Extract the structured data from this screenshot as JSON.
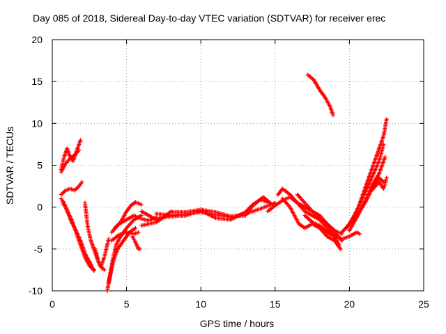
{
  "chart_data": {
    "type": "scatter",
    "title": "Day 085 of 2018, Sidereal Day-to-day VTEC variation (SDTVAR) for receiver erec",
    "xlabel": "GPS time / hours",
    "ylabel": "SDTVAR / TECUs",
    "xlim": [
      0,
      25
    ],
    "ylim": [
      -10,
      20
    ],
    "xticks": [
      "0",
      "5",
      "10",
      "15",
      "20",
      "25"
    ],
    "yticks": [
      "-10",
      "-5",
      "0",
      "5",
      "10",
      "15",
      "20"
    ],
    "grid": true,
    "marker": "+",
    "color": "#ff0000",
    "series": [
      {
        "segments": [
          [
            [
              0.6,
              4.5
            ],
            [
              0.8,
              6.0
            ],
            [
              1.0,
              7.0
            ],
            [
              1.2,
              6.0
            ],
            [
              1.4,
              5.5
            ],
            [
              1.6,
              6.5
            ],
            [
              1.8,
              7.5
            ],
            [
              1.9,
              8.0
            ]
          ],
          [
            [
              0.6,
              4.2
            ],
            [
              0.9,
              5.2
            ],
            [
              1.2,
              5.8
            ],
            [
              1.5,
              6.2
            ],
            [
              1.8,
              6.8
            ]
          ],
          [
            [
              0.6,
              1.5
            ],
            [
              0.9,
              2.0
            ],
            [
              1.2,
              2.2
            ],
            [
              1.5,
              2.0
            ],
            [
              1.8,
              2.5
            ],
            [
              2.0,
              3.0
            ]
          ],
          [
            [
              0.6,
              1.0
            ],
            [
              0.8,
              0.5
            ],
            [
              1.0,
              -0.5
            ],
            [
              1.3,
              -1.5
            ],
            [
              1.6,
              -3.0
            ],
            [
              1.9,
              -4.5
            ],
            [
              2.2,
              -6.0
            ],
            [
              2.5,
              -7.0
            ],
            [
              2.8,
              -7.5
            ]
          ],
          [
            [
              0.7,
              0.5
            ],
            [
              1.0,
              -0.3
            ],
            [
              1.3,
              -1.8
            ],
            [
              1.6,
              -2.8
            ],
            [
              1.9,
              -4.0
            ],
            [
              2.2,
              -5.5
            ],
            [
              2.5,
              -6.5
            ],
            [
              2.8,
              -7.6
            ]
          ],
          [
            [
              2.2,
              0.5
            ],
            [
              2.3,
              -1.0
            ],
            [
              2.4,
              -2.5
            ],
            [
              2.6,
              -4.0
            ],
            [
              2.9,
              -5.5
            ],
            [
              3.2,
              -7.0
            ],
            [
              3.5,
              -7.5
            ]
          ],
          [
            [
              2.9,
              -5.0
            ],
            [
              3.1,
              -6.5
            ],
            [
              3.3,
              -7.0
            ],
            [
              3.5,
              -6.0
            ],
            [
              3.7,
              -4.5
            ],
            [
              3.8,
              -3.8
            ]
          ],
          [
            [
              3.7,
              -10.0
            ],
            [
              3.9,
              -8.0
            ],
            [
              4.1,
              -6.0
            ],
            [
              4.3,
              -4.5
            ],
            [
              4.6,
              -3.5
            ],
            [
              5.0,
              -2.5
            ],
            [
              5.5,
              -1.5
            ],
            [
              6.0,
              -1.0
            ]
          ],
          [
            [
              3.8,
              -9.0
            ],
            [
              4.1,
              -6.5
            ],
            [
              4.4,
              -5.0
            ],
            [
              4.8,
              -4.0
            ],
            [
              5.2,
              -3.0
            ],
            [
              5.6,
              -2.5
            ]
          ],
          [
            [
              4.0,
              -4.0
            ],
            [
              4.5,
              -3.3
            ],
            [
              5.0,
              -3.0
            ],
            [
              5.5,
              -3.2
            ],
            [
              5.8,
              -3.0
            ]
          ],
          [
            [
              4.2,
              -2.5
            ],
            [
              4.6,
              -1.8
            ],
            [
              5.0,
              -0.5
            ],
            [
              5.3,
              0.2
            ],
            [
              5.6,
              0.6
            ],
            [
              6.0,
              0.3
            ]
          ],
          [
            [
              4.0,
              -3.0
            ],
            [
              4.5,
              -2.0
            ],
            [
              5.0,
              -1.5
            ],
            [
              5.5,
              -1.0
            ],
            [
              6.0,
              -1.4
            ],
            [
              6.5,
              -1.6
            ],
            [
              7.0,
              -1.2
            ]
          ],
          [
            [
              5.4,
              -3.5
            ],
            [
              5.6,
              -4.2
            ],
            [
              5.8,
              -5.0
            ],
            [
              5.9,
              -5.0
            ]
          ],
          [
            [
              6.0,
              -0.5
            ],
            [
              6.5,
              -1.0
            ],
            [
              7.0,
              -1.5
            ],
            [
              7.5,
              -1.2
            ],
            [
              8.0,
              -1.0
            ]
          ],
          [
            [
              6.0,
              -2.2
            ],
            [
              6.5,
              -2.0
            ],
            [
              7.0,
              -1.8
            ],
            [
              7.5,
              -1.2
            ],
            [
              8.0,
              -0.5
            ]
          ],
          [
            [
              7.0,
              -0.8
            ],
            [
              8.0,
              -1.0
            ],
            [
              9.0,
              -0.8
            ],
            [
              10.0,
              -0.6
            ],
            [
              11.0,
              -0.9
            ],
            [
              12.0,
              -1.2
            ],
            [
              13.0,
              -0.8
            ],
            [
              14.0,
              -0.2
            ],
            [
              15.0,
              0.5
            ]
          ],
          [
            [
              7.2,
              -1.3
            ],
            [
              8.0,
              -1.1
            ],
            [
              9.0,
              -1.0
            ],
            [
              10.0,
              -0.4
            ],
            [
              11.0,
              -1.3
            ],
            [
              12.0,
              -1.5
            ],
            [
              13.0,
              -0.6
            ],
            [
              13.5,
              0.3
            ],
            [
              14.0,
              0.9
            ],
            [
              14.5,
              0.6
            ]
          ],
          [
            [
              8.0,
              -0.6
            ],
            [
              9.0,
              -0.6
            ],
            [
              10.0,
              -0.3
            ],
            [
              11.0,
              -0.6
            ],
            [
              12.0,
              -1.1
            ],
            [
              13.0,
              -1.0
            ],
            [
              13.5,
              0.2
            ],
            [
              14.2,
              1.2
            ],
            [
              14.8,
              0.3
            ]
          ],
          [
            [
              14.5,
              -0.5
            ],
            [
              15.0,
              0.2
            ],
            [
              15.5,
              0.8
            ],
            [
              16.0,
              1.2
            ],
            [
              16.5,
              0.5
            ],
            [
              17.0,
              -0.5
            ],
            [
              17.5,
              -1.0
            ],
            [
              18.0,
              -1.5
            ],
            [
              18.5,
              -2.5
            ],
            [
              19.0,
              -3.5
            ],
            [
              19.3,
              -4.5
            ]
          ],
          [
            [
              15.2,
              1.5
            ],
            [
              15.5,
              2.2
            ],
            [
              16.0,
              1.5
            ],
            [
              16.5,
              0.5
            ],
            [
              17.0,
              0.0
            ],
            [
              17.5,
              -0.5
            ],
            [
              18.0,
              -1.0
            ],
            [
              18.5,
              -2.0
            ],
            [
              19.0,
              -3.0
            ],
            [
              19.5,
              -4.0
            ]
          ],
          [
            [
              15.5,
              1.0
            ],
            [
              16.0,
              0.0
            ],
            [
              16.3,
              -1.0
            ],
            [
              16.6,
              -2.0
            ],
            [
              17.0,
              -2.5
            ],
            [
              17.5,
              -2.0
            ],
            [
              18.0,
              -2.5
            ],
            [
              18.5,
              -3.5
            ],
            [
              19.0,
              -4.0
            ],
            [
              19.4,
              -5.0
            ]
          ],
          [
            [
              16.5,
              1.5
            ],
            [
              17.0,
              0.5
            ],
            [
              17.5,
              -0.5
            ],
            [
              18.0,
              -1.2
            ],
            [
              18.5,
              -2.0
            ],
            [
              19.0,
              -2.8
            ],
            [
              19.5,
              -3.2
            ]
          ],
          [
            [
              17.0,
              -1.0
            ],
            [
              17.5,
              -1.8
            ],
            [
              18.0,
              -2.2
            ],
            [
              18.5,
              -3.0
            ],
            [
              19.0,
              -3.5
            ],
            [
              19.5,
              -3.8
            ],
            [
              20.0,
              -3.5
            ],
            [
              20.5,
              -3.0
            ],
            [
              20.7,
              -3.2
            ]
          ],
          [
            [
              19.5,
              -3.0
            ],
            [
              20.0,
              -2.0
            ],
            [
              20.5,
              -0.5
            ],
            [
              21.0,
              1.5
            ],
            [
              21.5,
              3.5
            ],
            [
              22.0,
              5.5
            ],
            [
              22.3,
              7.5
            ]
          ],
          [
            [
              19.8,
              -2.5
            ],
            [
              20.2,
              -1.5
            ],
            [
              20.6,
              0.0
            ],
            [
              21.0,
              2.0
            ],
            [
              21.4,
              4.0
            ],
            [
              21.8,
              6.0
            ],
            [
              22.3,
              8.5
            ],
            [
              22.5,
              10.5
            ]
          ],
          [
            [
              20.0,
              -2.8
            ],
            [
              20.5,
              -1.2
            ],
            [
              21.0,
              0.5
            ],
            [
              21.5,
              2.5
            ],
            [
              22.0,
              4.0
            ],
            [
              22.4,
              6.0
            ]
          ],
          [
            [
              20.2,
              -2.0
            ],
            [
              20.7,
              -0.5
            ],
            [
              21.2,
              1.0
            ],
            [
              21.6,
              2.5
            ],
            [
              22.0,
              3.5
            ],
            [
              22.3,
              3.0
            ]
          ],
          [
            [
              21.5,
              2.0
            ],
            [
              22.0,
              3.0
            ],
            [
              22.3,
              2.2
            ],
            [
              22.5,
              3.5
            ]
          ],
          [
            [
              17.2,
              15.8
            ],
            [
              17.6,
              15.2
            ],
            [
              18.0,
              14.0
            ],
            [
              18.4,
              13.0
            ],
            [
              18.7,
              12.0
            ],
            [
              18.9,
              11.0
            ]
          ]
        ]
      }
    ]
  }
}
